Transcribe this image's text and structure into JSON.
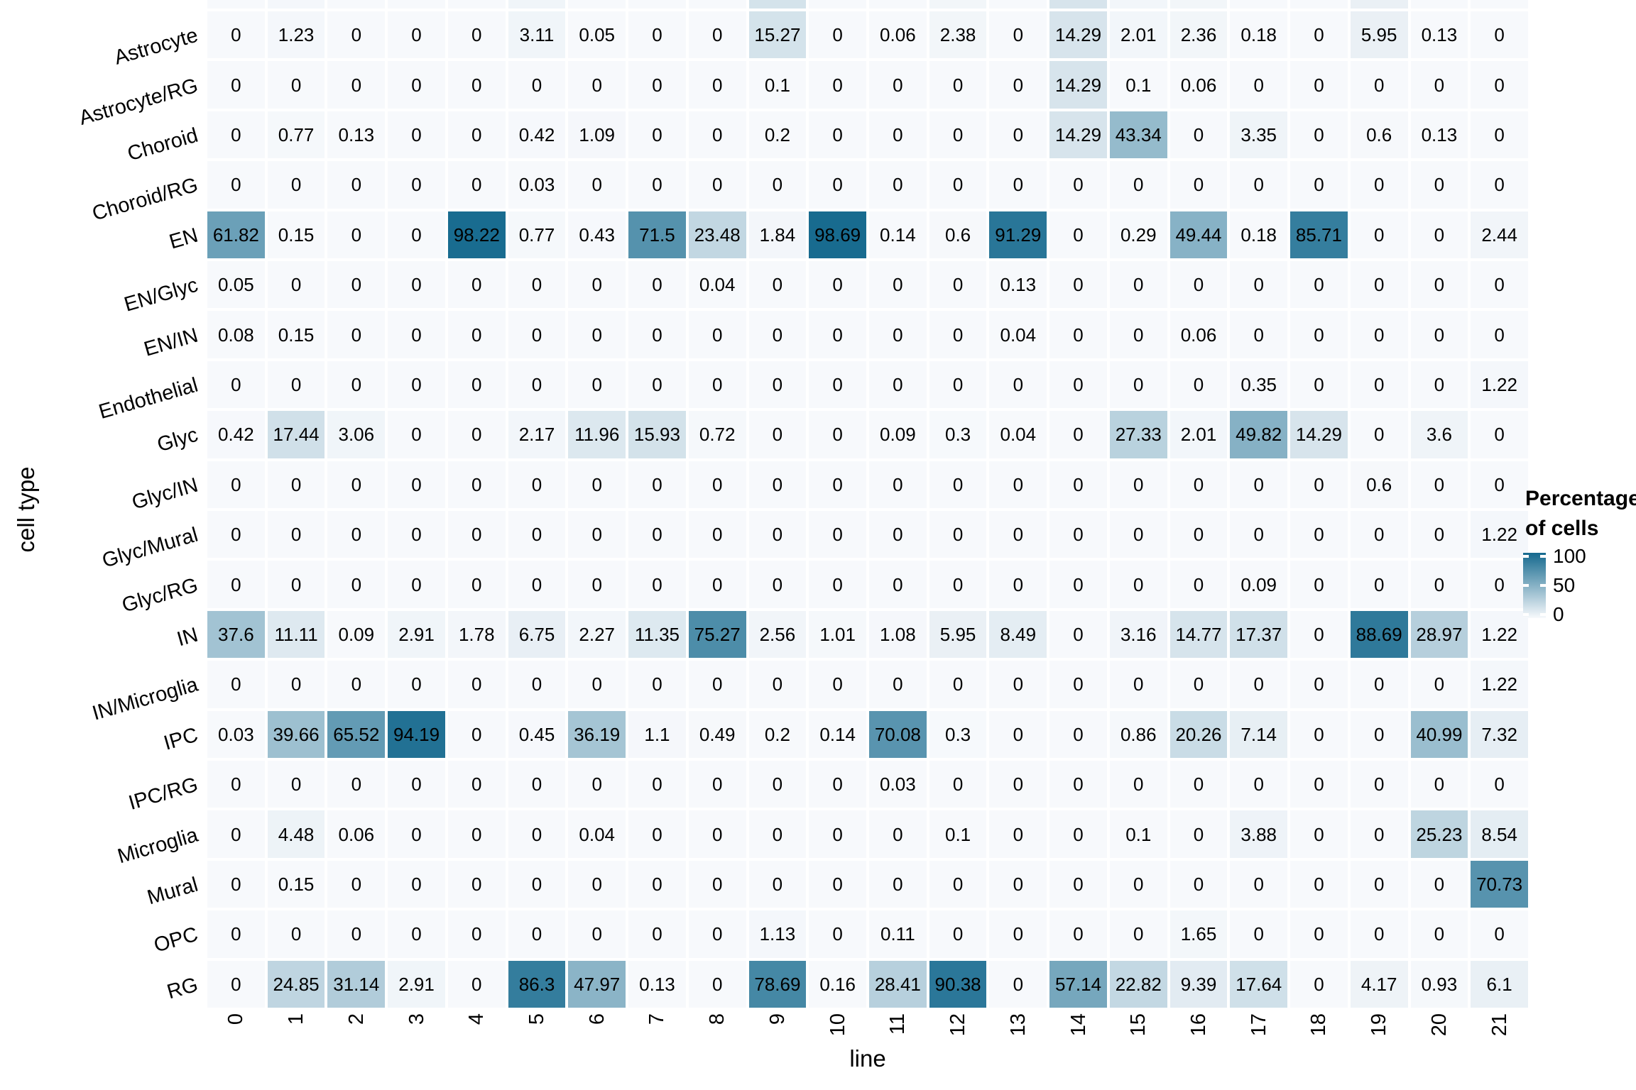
{
  "figure": {
    "x_axis_title": "line",
    "y_axis_title": "cell type",
    "legend": {
      "title_line1": "Percentage",
      "title_line2": "of cells",
      "tick_labels": [
        "100",
        "50",
        "0"
      ]
    }
  },
  "chart_data": {
    "type": "heatmap",
    "title": "",
    "xlabel": "line",
    "ylabel": "cell type",
    "x_categories": [
      "0",
      "1",
      "2",
      "3",
      "4",
      "5",
      "6",
      "7",
      "8",
      "9",
      "10",
      "11",
      "12",
      "13",
      "14",
      "15",
      "16",
      "17",
      "18",
      "19",
      "20",
      "21"
    ],
    "y_categories": [
      "Astrocyte",
      "Astrocyte/RG",
      "Choroid",
      "Choroid/RG",
      "EN",
      "EN/Glyc",
      "EN/IN",
      "Endothelial",
      "Glyc",
      "Glyc/IN",
      "Glyc/Mural",
      "Glyc/RG",
      "IN",
      "IN/Microglia",
      "IPC",
      "IPC/RG",
      "Microglia",
      "Mural",
      "OPC",
      "RG"
    ],
    "values": [
      [
        0,
        1.23,
        0,
        0,
        0,
        3.11,
        0.05,
        0,
        0,
        15.27,
        0,
        0.06,
        2.38,
        0,
        14.29,
        2.01,
        2.36,
        0.18,
        0,
        5.95,
        0.13,
        0
      ],
      [
        0,
        0,
        0,
        0,
        0,
        0,
        0,
        0,
        0,
        0.1,
        0,
        0,
        0,
        0,
        14.29,
        0.1,
        0.06,
        0,
        0,
        0,
        0,
        0
      ],
      [
        0,
        0.77,
        0.13,
        0,
        0,
        0.42,
        1.09,
        0,
        0,
        0.2,
        0,
        0,
        0,
        0,
        14.29,
        43.34,
        0,
        3.35,
        0,
        0.6,
        0.13,
        0
      ],
      [
        0,
        0,
        0,
        0,
        0,
        0.03,
        0,
        0,
        0,
        0,
        0,
        0,
        0,
        0,
        0,
        0,
        0,
        0,
        0,
        0,
        0,
        0
      ],
      [
        61.82,
        0.15,
        0,
        0,
        98.22,
        0.77,
        0.43,
        71.5,
        23.48,
        1.84,
        98.69,
        0.14,
        0.6,
        91.29,
        0,
        0.29,
        49.44,
        0.18,
        85.71,
        0,
        0,
        2.44
      ],
      [
        0.05,
        0,
        0,
        0,
        0,
        0,
        0,
        0,
        0.04,
        0,
        0,
        0,
        0,
        0.13,
        0,
        0,
        0,
        0,
        0,
        0,
        0,
        0
      ],
      [
        0.08,
        0.15,
        0,
        0,
        0,
        0,
        0,
        0,
        0,
        0,
        0,
        0,
        0,
        0.04,
        0,
        0,
        0.06,
        0,
        0,
        0,
        0,
        0
      ],
      [
        0,
        0,
        0,
        0,
        0,
        0,
        0,
        0,
        0,
        0,
        0,
        0,
        0,
        0,
        0,
        0,
        0,
        0.35,
        0,
        0,
        0,
        1.22
      ],
      [
        0.42,
        17.44,
        3.06,
        0,
        0,
        2.17,
        11.96,
        15.93,
        0.72,
        0,
        0,
        0.09,
        0.3,
        0.04,
        0,
        27.33,
        2.01,
        49.82,
        14.29,
        0,
        3.6,
        0
      ],
      [
        0,
        0,
        0,
        0,
        0,
        0,
        0,
        0,
        0,
        0,
        0,
        0,
        0,
        0,
        0,
        0,
        0,
        0,
        0,
        0.6,
        0,
        0
      ],
      [
        0,
        0,
        0,
        0,
        0,
        0,
        0,
        0,
        0,
        0,
        0,
        0,
        0,
        0,
        0,
        0,
        0,
        0,
        0,
        0,
        0,
        1.22
      ],
      [
        0,
        0,
        0,
        0,
        0,
        0,
        0,
        0,
        0,
        0,
        0,
        0,
        0,
        0,
        0,
        0,
        0,
        0.09,
        0,
        0,
        0,
        0
      ],
      [
        37.6,
        11.11,
        0.09,
        2.91,
        1.78,
        6.75,
        2.27,
        11.35,
        75.27,
        2.56,
        1.01,
        1.08,
        5.95,
        8.49,
        0,
        3.16,
        14.77,
        17.37,
        0,
        88.69,
        28.97,
        1.22
      ],
      [
        0,
        0,
        0,
        0,
        0,
        0,
        0,
        0,
        0,
        0,
        0,
        0,
        0,
        0,
        0,
        0,
        0,
        0,
        0,
        0,
        0,
        1.22
      ],
      [
        0.03,
        39.66,
        65.52,
        94.19,
        0,
        0.45,
        36.19,
        1.1,
        0.49,
        0.2,
        0.14,
        70.08,
        0.3,
        0,
        0,
        0.86,
        20.26,
        7.14,
        0,
        0,
        40.99,
        7.32
      ],
      [
        0,
        0,
        0,
        0,
        0,
        0,
        0,
        0,
        0,
        0,
        0,
        0.03,
        0,
        0,
        0,
        0,
        0,
        0,
        0,
        0,
        0,
        0
      ],
      [
        0,
        4.48,
        0.06,
        0,
        0,
        0,
        0.04,
        0,
        0,
        0,
        0,
        0,
        0.1,
        0,
        0,
        0.1,
        0,
        3.88,
        0,
        0,
        25.23,
        8.54
      ],
      [
        0,
        0.15,
        0,
        0,
        0,
        0,
        0,
        0,
        0,
        0,
        0,
        0,
        0,
        0,
        0,
        0,
        0,
        0,
        0,
        0,
        0,
        70.73
      ],
      [
        0,
        0,
        0,
        0,
        0,
        0,
        0,
        0,
        0,
        1.13,
        0,
        0.11,
        0,
        0,
        0,
        0,
        1.65,
        0,
        0,
        0,
        0,
        0
      ],
      [
        0,
        24.85,
        31.14,
        2.91,
        0,
        86.3,
        47.97,
        0.13,
        0,
        78.69,
        0.16,
        28.41,
        90.38,
        0,
        57.14,
        22.82,
        9.39,
        17.64,
        0,
        4.17,
        0.93,
        6.1
      ]
    ],
    "colorscale": {
      "low_color": "#F7F9FC",
      "high_color": "#15698E",
      "domain": [
        0,
        100
      ],
      "legend_title": "Percentage of cells",
      "legend_ticks": [
        100,
        50,
        0
      ],
      "legend_position": "right"
    },
    "grid": "white gaps between tiles",
    "x_tick_rotation_deg": 90,
    "y_tick_rotation_deg": 16
  }
}
